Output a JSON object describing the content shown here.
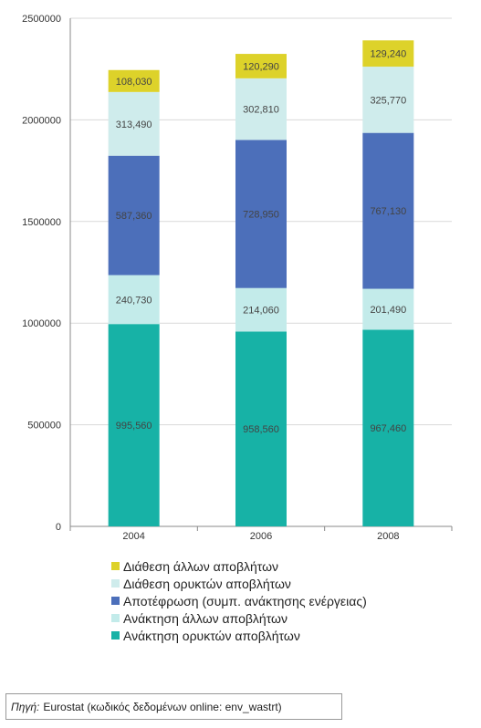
{
  "chart_data": {
    "type": "bar",
    "stacked": true,
    "categories": [
      "2004",
      "2006",
      "2008"
    ],
    "ylim": [
      0,
      2500000
    ],
    "yticks": [
      "0",
      "500000",
      "1000000",
      "1500000",
      "2000000",
      "2500000"
    ],
    "ytick_values": [
      0,
      500000,
      1000000,
      1500000,
      2000000,
      2500000
    ],
    "grid": true,
    "legend_position": "bottom",
    "series": [
      {
        "name": "Ανάκτηση ορυκτών αποβλήτων",
        "color": "#17b2a6",
        "values": [
          995560,
          958560,
          967460
        ],
        "labels": [
          "995,560",
          "958,560",
          "967,460"
        ]
      },
      {
        "name": "Ανάκτηση άλλων αποβλήτων",
        "color": "#c3ebea",
        "values": [
          240730,
          214060,
          201490
        ],
        "labels": [
          "240,730",
          "214,060",
          "201,490"
        ]
      },
      {
        "name": "Αποτέφρωση (συμπ. ανάκτησης ενέργειας)",
        "color": "#4c6fba",
        "values": [
          587360,
          728950,
          767130
        ],
        "labels": [
          "587,360",
          "728,950",
          "767,130"
        ]
      },
      {
        "name": "Διάθεση ορυκτών αποβλήτων",
        "color": "#cfecec",
        "values": [
          313490,
          302810,
          325770
        ],
        "labels": [
          "313,490",
          "302,810",
          "325,770"
        ]
      },
      {
        "name": "Διάθεση άλλων αποβλήτων",
        "color": "#ddd22a",
        "values": [
          108030,
          120290,
          129240
        ],
        "labels": [
          "108,030",
          "120,290",
          "129,240"
        ]
      }
    ],
    "legend_order": [
      4,
      3,
      2,
      1,
      0
    ]
  },
  "source": {
    "prefix": "Πηγή:",
    "text": "Eurostat (κωδικός δεδομένων online: env_wastrt)"
  }
}
